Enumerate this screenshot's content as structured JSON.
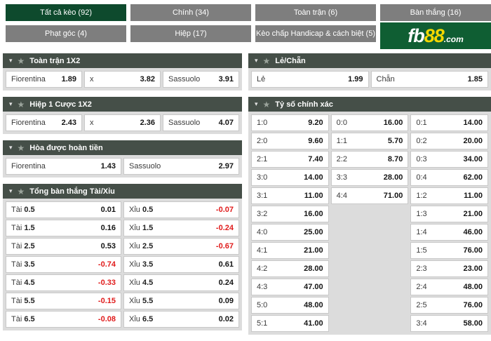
{
  "tabs": [
    {
      "label": "Tất cả kèo (92)",
      "active": true
    },
    {
      "label": "Chính (34)",
      "active": false
    },
    {
      "label": "Toàn trận (6)",
      "active": false
    },
    {
      "label": "Bàn thắng (16)",
      "active": false
    },
    {
      "label": "Phạt góc (4)",
      "active": false
    },
    {
      "label": "Hiệp (17)",
      "active": false
    },
    {
      "label": "Kèo chấp Handicap & cách biệt (5)",
      "active": false
    }
  ],
  "logo": {
    "fb": "fb",
    "eight8": "88",
    "com": ".com"
  },
  "markets": {
    "fulltime_1x2": {
      "title": "Toàn trận 1X2",
      "cells": [
        {
          "label": "Fiorentina",
          "odds": "1.89"
        },
        {
          "label": "x",
          "odds": "3.82"
        },
        {
          "label": "Sassuolo",
          "odds": "3.91"
        }
      ]
    },
    "half1_1x2": {
      "title": "Hiệp 1 Cược 1X2",
      "cells": [
        {
          "label": "Fiorentina",
          "odds": "2.43"
        },
        {
          "label": "x",
          "odds": "2.36"
        },
        {
          "label": "Sassuolo",
          "odds": "4.07"
        }
      ]
    },
    "draw_refund": {
      "title": "Hòa được hoàn tiền",
      "cells": [
        {
          "label": "Fiorentina",
          "odds": "1.43"
        },
        {
          "label": "Sassuolo",
          "odds": "2.97"
        }
      ]
    },
    "total_goals": {
      "title": "Tổng bàn thắng Tài/Xỉu",
      "rows": [
        {
          "over_side": "Tài",
          "over_line": "0.5",
          "over_odds": "0.01",
          "under_side": "Xỉu",
          "under_line": "0.5",
          "under_odds": "-0.07"
        },
        {
          "over_side": "Tài",
          "over_line": "1.5",
          "over_odds": "0.16",
          "under_side": "Xỉu",
          "under_line": "1.5",
          "under_odds": "-0.24"
        },
        {
          "over_side": "Tài",
          "over_line": "2.5",
          "over_odds": "0.53",
          "under_side": "Xỉu",
          "under_line": "2.5",
          "under_odds": "-0.67"
        },
        {
          "over_side": "Tài",
          "over_line": "3.5",
          "over_odds": "-0.74",
          "under_side": "Xỉu",
          "under_line": "3.5",
          "under_odds": "0.61"
        },
        {
          "over_side": "Tài",
          "over_line": "4.5",
          "over_odds": "-0.33",
          "under_side": "Xỉu",
          "under_line": "4.5",
          "under_odds": "0.24"
        },
        {
          "over_side": "Tài",
          "over_line": "5.5",
          "over_odds": "-0.15",
          "under_side": "Xỉu",
          "under_line": "5.5",
          "under_odds": "0.09"
        },
        {
          "over_side": "Tài",
          "over_line": "6.5",
          "over_odds": "-0.08",
          "under_side": "Xỉu",
          "under_line": "6.5",
          "under_odds": "0.02"
        }
      ]
    },
    "odd_even": {
      "title": "Lẻ/Chẵn",
      "cells": [
        {
          "label": "Lẻ",
          "odds": "1.99"
        },
        {
          "label": "Chẵn",
          "odds": "1.85"
        }
      ]
    },
    "correct_score": {
      "title": "Tỷ số chính xác",
      "rows": [
        [
          {
            "score": "1:0",
            "odds": "9.20"
          },
          {
            "score": "0:0",
            "odds": "16.00"
          },
          {
            "score": "0:1",
            "odds": "14.00"
          }
        ],
        [
          {
            "score": "2:0",
            "odds": "9.60"
          },
          {
            "score": "1:1",
            "odds": "5.70"
          },
          {
            "score": "0:2",
            "odds": "20.00"
          }
        ],
        [
          {
            "score": "2:1",
            "odds": "7.40"
          },
          {
            "score": "2:2",
            "odds": "8.70"
          },
          {
            "score": "0:3",
            "odds": "34.00"
          }
        ],
        [
          {
            "score": "3:0",
            "odds": "14.00"
          },
          {
            "score": "3:3",
            "odds": "28.00"
          },
          {
            "score": "0:4",
            "odds": "62.00"
          }
        ],
        [
          {
            "score": "3:1",
            "odds": "11.00"
          },
          {
            "score": "4:4",
            "odds": "71.00"
          },
          {
            "score": "1:2",
            "odds": "11.00"
          }
        ],
        [
          {
            "score": "3:2",
            "odds": "16.00"
          },
          null,
          {
            "score": "1:3",
            "odds": "21.00"
          }
        ],
        [
          {
            "score": "4:0",
            "odds": "25.00"
          },
          null,
          {
            "score": "1:4",
            "odds": "46.00"
          }
        ],
        [
          {
            "score": "4:1",
            "odds": "21.00"
          },
          null,
          {
            "score": "1:5",
            "odds": "76.00"
          }
        ],
        [
          {
            "score": "4:2",
            "odds": "28.00"
          },
          null,
          {
            "score": "2:3",
            "odds": "23.00"
          }
        ],
        [
          {
            "score": "4:3",
            "odds": "47.00"
          },
          null,
          {
            "score": "2:4",
            "odds": "48.00"
          }
        ],
        [
          {
            "score": "5:0",
            "odds": "48.00"
          },
          null,
          {
            "score": "2:5",
            "odds": "76.00"
          }
        ],
        [
          {
            "score": "5:1",
            "odds": "41.00"
          },
          null,
          {
            "score": "3:4",
            "odds": "58.00"
          }
        ]
      ]
    }
  },
  "colors": {
    "active_tab": "#0e4a2d",
    "tab_gray": "#7e7e7e",
    "header_bg": "#454f48",
    "section_bg": "#dcdcdc",
    "cell_border": "#c9c9c9",
    "negative": "#e01b1b",
    "logo_green": "#0f5e33",
    "logo_yellow": "#f5d800"
  }
}
